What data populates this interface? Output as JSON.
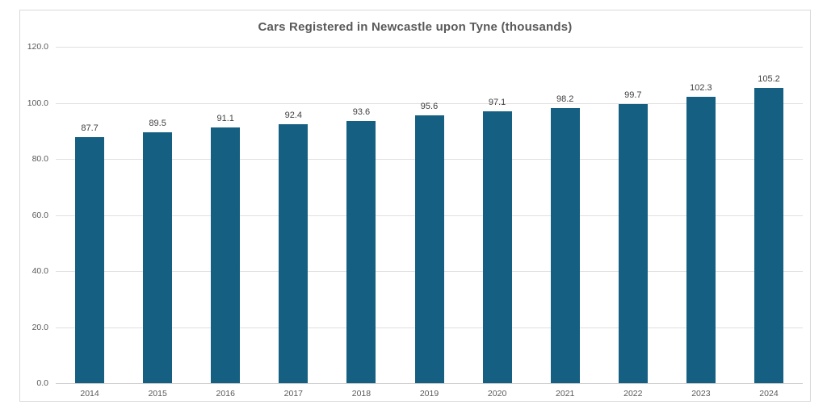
{
  "chart_data": {
    "type": "bar",
    "title": "Cars Registered in Newcastle upon Tyne (thousands)",
    "categories": [
      "2014",
      "2015",
      "2016",
      "2017",
      "2018",
      "2019",
      "2020",
      "2021",
      "2022",
      "2023",
      "2024"
    ],
    "values": [
      87.7,
      89.5,
      91.1,
      92.4,
      93.6,
      95.6,
      97.1,
      98.2,
      99.7,
      102.3,
      105.2
    ],
    "data_labels": [
      "87.7",
      "89.5",
      "91.1",
      "92.4",
      "93.6",
      "95.6",
      "97.1",
      "98.2",
      "99.7",
      "102.3",
      "105.2"
    ],
    "xlabel": "",
    "ylabel": "",
    "ylim": [
      0,
      120
    ],
    "ytick_values": [
      0,
      20,
      40,
      60,
      80,
      100,
      120
    ],
    "ytick_labels": [
      "0.0",
      "20.0",
      "40.0",
      "60.0",
      "80.0",
      "100.0",
      "120.0"
    ],
    "grid": true,
    "legend": "none",
    "colors": {
      "bar_fill": "#156082",
      "title_text": "#595959",
      "tick_text": "#595959",
      "data_label_text": "#404040",
      "gridline": "#e0e0e0",
      "frame_border": "#d9d9d9",
      "background": "#ffffff"
    }
  }
}
